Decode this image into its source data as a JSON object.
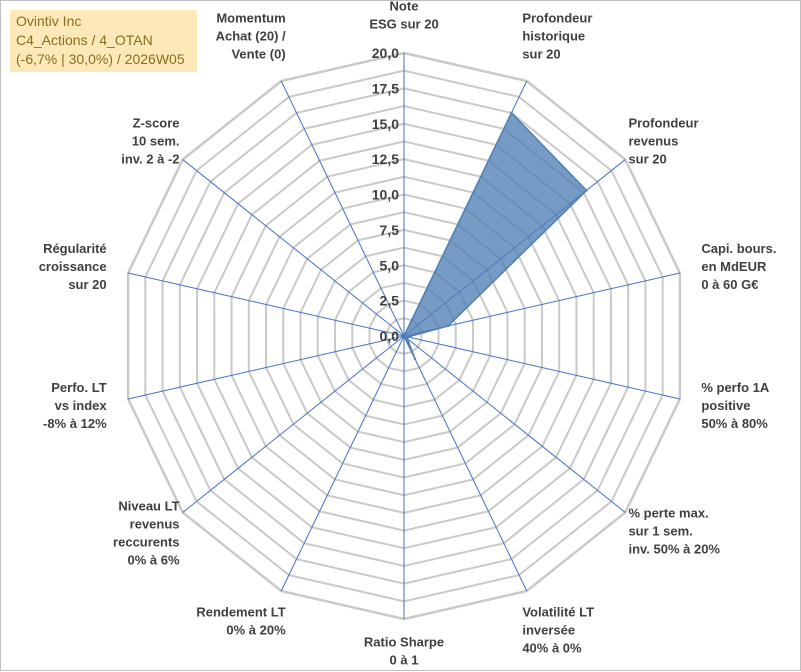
{
  "title": {
    "line1": "Ovintiv Inc",
    "line2": "C4_Actions / 4_OTAN",
    "line3": "(-6,7% | 30,0%) / 2026W05"
  },
  "chart_data": {
    "type": "radar",
    "rmin": 0,
    "rmax": 20,
    "tick_step": 2.5,
    "ticks": [
      "0,0",
      "2,5",
      "5,0",
      "7,5",
      "10,0",
      "12,5",
      "15,0",
      "17,5",
      "20,0"
    ],
    "axes": [
      {
        "name": "esg",
        "label": [
          "Note",
          "ESG sur 20"
        ]
      },
      {
        "name": "profondeur-historique",
        "label": [
          "Profondeur",
          "historique",
          "sur 20"
        ]
      },
      {
        "name": "profondeur-revenus",
        "label": [
          "Profondeur",
          "revenus",
          "sur 20"
        ]
      },
      {
        "name": "capi-bours",
        "label": [
          "Capi. bours.",
          "en MdEUR",
          "0 à 60 G€"
        ]
      },
      {
        "name": "perfo-1a",
        "label": [
          "% perfo 1A",
          "positive",
          "50% à 80%"
        ]
      },
      {
        "name": "perte-max",
        "label": [
          "% perte max.",
          "sur 1 sem.",
          "inv. 50% à 20%"
        ]
      },
      {
        "name": "volatilite",
        "label": [
          "Volatilité LT",
          "inversée",
          "40% à 0%"
        ]
      },
      {
        "name": "ratio-sharpe",
        "label": [
          "Ratio Sharpe",
          "0 à 1"
        ]
      },
      {
        "name": "rendement",
        "label": [
          "Rendement LT",
          "0% à 20%"
        ]
      },
      {
        "name": "niveau-revenus",
        "label": [
          "Niveau LT",
          "revenus",
          "reccurents",
          "0% à 6%"
        ]
      },
      {
        "name": "perfo-lt-index",
        "label": [
          "Perfo. LT",
          "vs index",
          "-8% à 12%"
        ]
      },
      {
        "name": "regularite",
        "label": [
          "Régularité",
          "croissance",
          "sur 20"
        ]
      },
      {
        "name": "zscore",
        "label": [
          "Z-score",
          "10 sem.",
          "inv. 2 à -2"
        ]
      },
      {
        "name": "momentum",
        "label": [
          "Momentum",
          "Achat (20) /",
          "Vente (0)"
        ]
      }
    ],
    "series": [
      {
        "name": "Ovintiv Inc",
        "color": "#4f7fb3",
        "values": [
          0,
          17.5,
          16.5,
          3.2,
          0.3,
          0.3,
          1.8,
          0,
          0,
          0,
          0,
          0,
          0,
          0
        ]
      }
    ],
    "grid_color": "#c9c9c9",
    "spoke_color": "#4472c4"
  }
}
